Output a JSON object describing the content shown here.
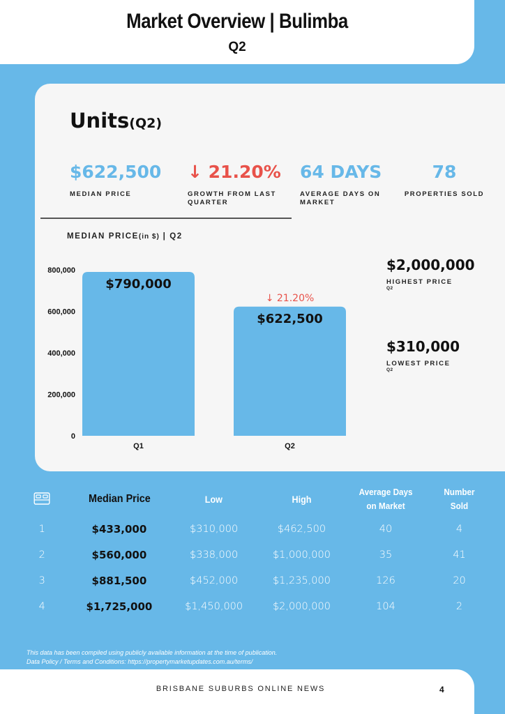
{
  "header": {
    "title": "Market Overview | Bulimba",
    "subtitle": "Q2"
  },
  "section": {
    "title": "Units",
    "title_suffix": "(Q2)"
  },
  "kpis": [
    {
      "value": "$622,500",
      "label": "MEDIAN PRICE",
      "direction": "neutral"
    },
    {
      "value": "↓ 21.20%",
      "label": "GROWTH FROM LAST QUARTER",
      "direction": "down"
    },
    {
      "value": "64 DAYS",
      "label": "AVERAGE DAYS ON MARKET",
      "direction": "neutral"
    },
    {
      "value": "78",
      "label": "PROPERTIES SOLD",
      "direction": "neutral"
    }
  ],
  "chart_title": {
    "main": "MEDIAN PRICE",
    "unit": "(in $)",
    "suffix": "| Q2"
  },
  "chart_data": {
    "type": "bar",
    "categories": [
      "Q1",
      "Q2"
    ],
    "values": [
      790000,
      622500
    ],
    "data_labels": [
      "$790,000",
      "$622,500"
    ],
    "annotation": "↓ 21.20%",
    "y_ticks": [
      "0",
      "200,000",
      "400,000",
      "600,000",
      "800,000"
    ],
    "ylim": [
      0,
      800000
    ],
    "grid": false,
    "bar_color": "#67b8e8",
    "annotation_color": "#e8524a"
  },
  "side_stats": [
    {
      "value": "$2,000,000",
      "label": "HIGHEST PRICE",
      "sub": "Q2"
    },
    {
      "value": "$310,000",
      "label": "LOWEST PRICE",
      "sub": "Q2"
    }
  ],
  "table": {
    "icon": "bed-icon",
    "headers": {
      "median": "Median Price",
      "low": "Low",
      "high": "High",
      "days_1": "Average Days",
      "days_2": "on Market",
      "sold_1": "Number",
      "sold_2": "Sold"
    },
    "rows": [
      {
        "beds": "1",
        "median": "$433,000",
        "low": "$310,000",
        "high": "$462,500",
        "days": "40",
        "sold": "4"
      },
      {
        "beds": "2",
        "median": "$560,000",
        "low": "$338,000",
        "high": "$1,000,000",
        "days": "35",
        "sold": "41"
      },
      {
        "beds": "3",
        "median": "$881,500",
        "low": "$452,000",
        "high": "$1,235,000",
        "days": "126",
        "sold": "20"
      },
      {
        "beds": "4",
        "median": "$1,725,000",
        "low": "$1,450,000",
        "high": "$2,000,000",
        "days": "104",
        "sold": "2"
      }
    ]
  },
  "footnote": {
    "line1": "This data has been compiled using publicly available information at the time of publication.",
    "line2": "Data Policy / Terms and Conditions: https://propertymarketupdates.com.au/terms/"
  },
  "footer": {
    "text": "BRISBANE SUBURBS ONLINE NEWS",
    "page": "4"
  },
  "colors": {
    "accent": "#67b8e8",
    "negative": "#e8524a"
  }
}
